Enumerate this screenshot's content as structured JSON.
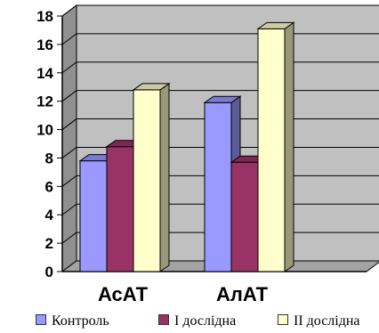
{
  "chart_data": {
    "type": "bar",
    "categories": [
      "АсАТ",
      "АлАТ"
    ],
    "series": [
      {
        "name": "Контроль",
        "values": [
          7.8,
          11.9
        ],
        "color": "#9999ff"
      },
      {
        "name": "I дослідна",
        "values": [
          8.8,
          7.7
        ],
        "color": "#993366"
      },
      {
        "name": "II дослідна",
        "values": [
          12.8,
          17.1
        ],
        "color": "#ffffcc"
      }
    ],
    "title": "",
    "xlabel": "",
    "ylabel": "",
    "ylim": [
      0,
      18
    ],
    "yticks": [
      "0",
      "2",
      "4",
      "6",
      "8",
      "10",
      "12",
      "14",
      "16",
      "18"
    ],
    "grid": true,
    "legend": "bottom",
    "style": "3d-column",
    "plot_background": "#c0c0c0"
  },
  "legend": {
    "items": [
      "Контроль",
      "I дослідна",
      "II дослідна"
    ]
  }
}
